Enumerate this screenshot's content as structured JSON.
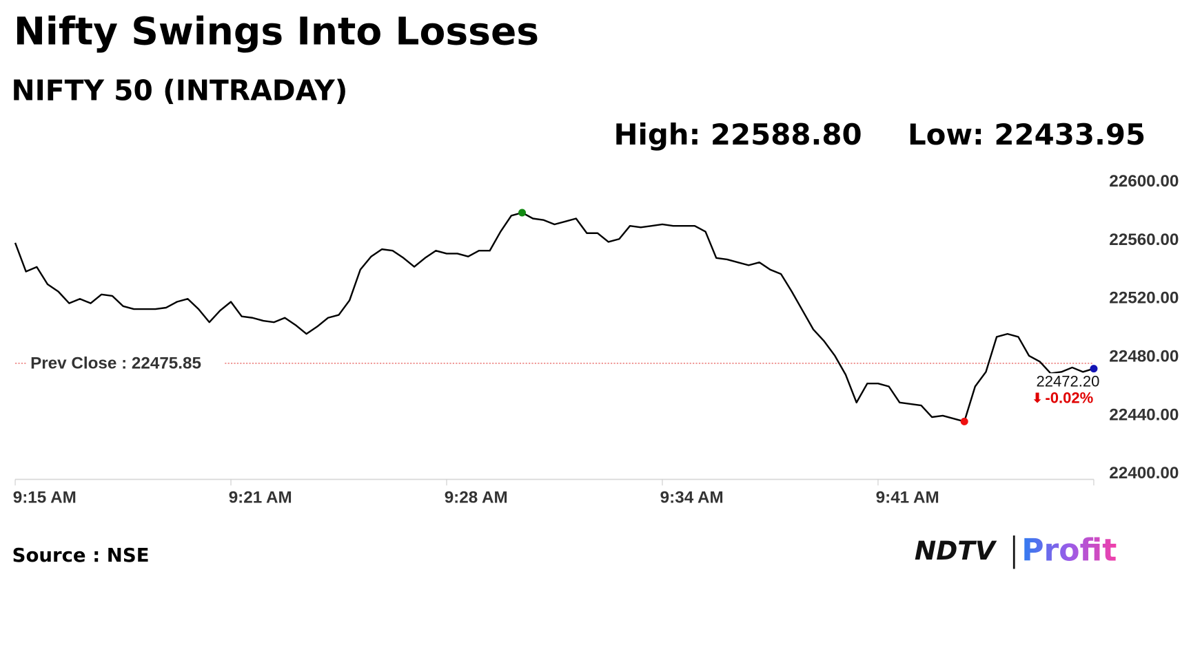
{
  "chart_data": {
    "type": "line",
    "title": "Nifty Swings Into Losses",
    "subtitle": "NIFTY 50 (INTRADAY)",
    "high_label": "High: 22588.80",
    "low_label": "Low: 22433.95",
    "prev_close": 22475.85,
    "prev_close_label": "Prev Close : 22475.85",
    "prev_close_color": "#e0322f",
    "last_label": "22472.20",
    "change_label": "-0.02%",
    "change_color": "#e00000",
    "high_color": "#138a13",
    "low_color": "#ee1111",
    "last_color": "#1414b4",
    "source": "Source : NSE",
    "logo": {
      "left": "NDTV",
      "right": "Profit"
    },
    "categories": [
      "9:15 AM",
      null,
      null,
      null,
      null,
      null,
      null,
      null,
      null,
      null,
      null,
      null,
      null,
      null,
      null,
      null,
      null,
      null,
      null,
      null,
      "9:21 AM",
      null,
      null,
      null,
      null,
      null,
      null,
      null,
      null,
      null,
      null,
      null,
      null,
      null,
      null,
      null,
      null,
      null,
      null,
      null,
      "9:28 AM",
      null,
      null,
      null,
      null,
      null,
      null,
      null,
      null,
      null,
      null,
      null,
      null,
      null,
      null,
      null,
      null,
      null,
      null,
      null,
      "9:34 AM",
      null,
      null,
      null,
      null,
      null,
      null,
      null,
      null,
      null,
      null,
      null,
      null,
      null,
      null,
      null,
      null,
      null,
      null,
      null,
      "9:41 AM",
      null,
      null,
      null,
      null,
      null,
      null,
      null,
      null,
      null,
      null,
      null,
      null,
      null,
      null,
      null,
      null,
      null,
      null,
      null,
      null
    ],
    "series": [
      {
        "name": "NIFTY 50",
        "color": "#000000",
        "values": [
          22558.4,
          22538.7,
          22541.8,
          22530,
          22525,
          22517,
          22520,
          22517,
          22523,
          22522,
          22515,
          22513,
          22513,
          22513,
          22514,
          22518,
          22520,
          22513,
          22504,
          22512,
          22518,
          22508,
          22507,
          22505,
          22504,
          22507,
          22502,
          22496,
          22501,
          22507,
          22509,
          22519,
          22540,
          22549,
          22554,
          22553,
          22548,
          22542,
          22548,
          22553,
          22551,
          22551,
          22549,
          22553,
          22553,
          22566,
          22577,
          22579,
          22575,
          22574,
          22571,
          22573,
          22575,
          22565,
          22565,
          22559,
          22561,
          22570,
          22569,
          22570,
          22571,
          22570,
          22570,
          22570,
          22566,
          22548,
          22547,
          22545,
          22543,
          22545,
          22540,
          22537,
          22525,
          22512,
          22499,
          22491,
          22481,
          22468,
          22449,
          22462,
          22462,
          22460,
          22449,
          22448,
          22447,
          22439,
          22440,
          22438,
          22436,
          22460,
          22470,
          22494,
          22496,
          22494,
          22481,
          22477,
          22469,
          22470,
          22473,
          22470,
          22472.2
        ]
      }
    ],
    "ylim": [
      22400,
      22600
    ],
    "yticks": [
      {
        "value": 22400,
        "label": "22400.00"
      },
      {
        "value": 22440,
        "label": "22440.00"
      },
      {
        "value": 22480,
        "label": "22480.00"
      },
      {
        "value": 22520,
        "label": "22520.00"
      },
      {
        "value": 22560,
        "label": "22560.00"
      },
      {
        "value": 22600,
        "label": "22600.00"
      }
    ],
    "grid": false
  }
}
